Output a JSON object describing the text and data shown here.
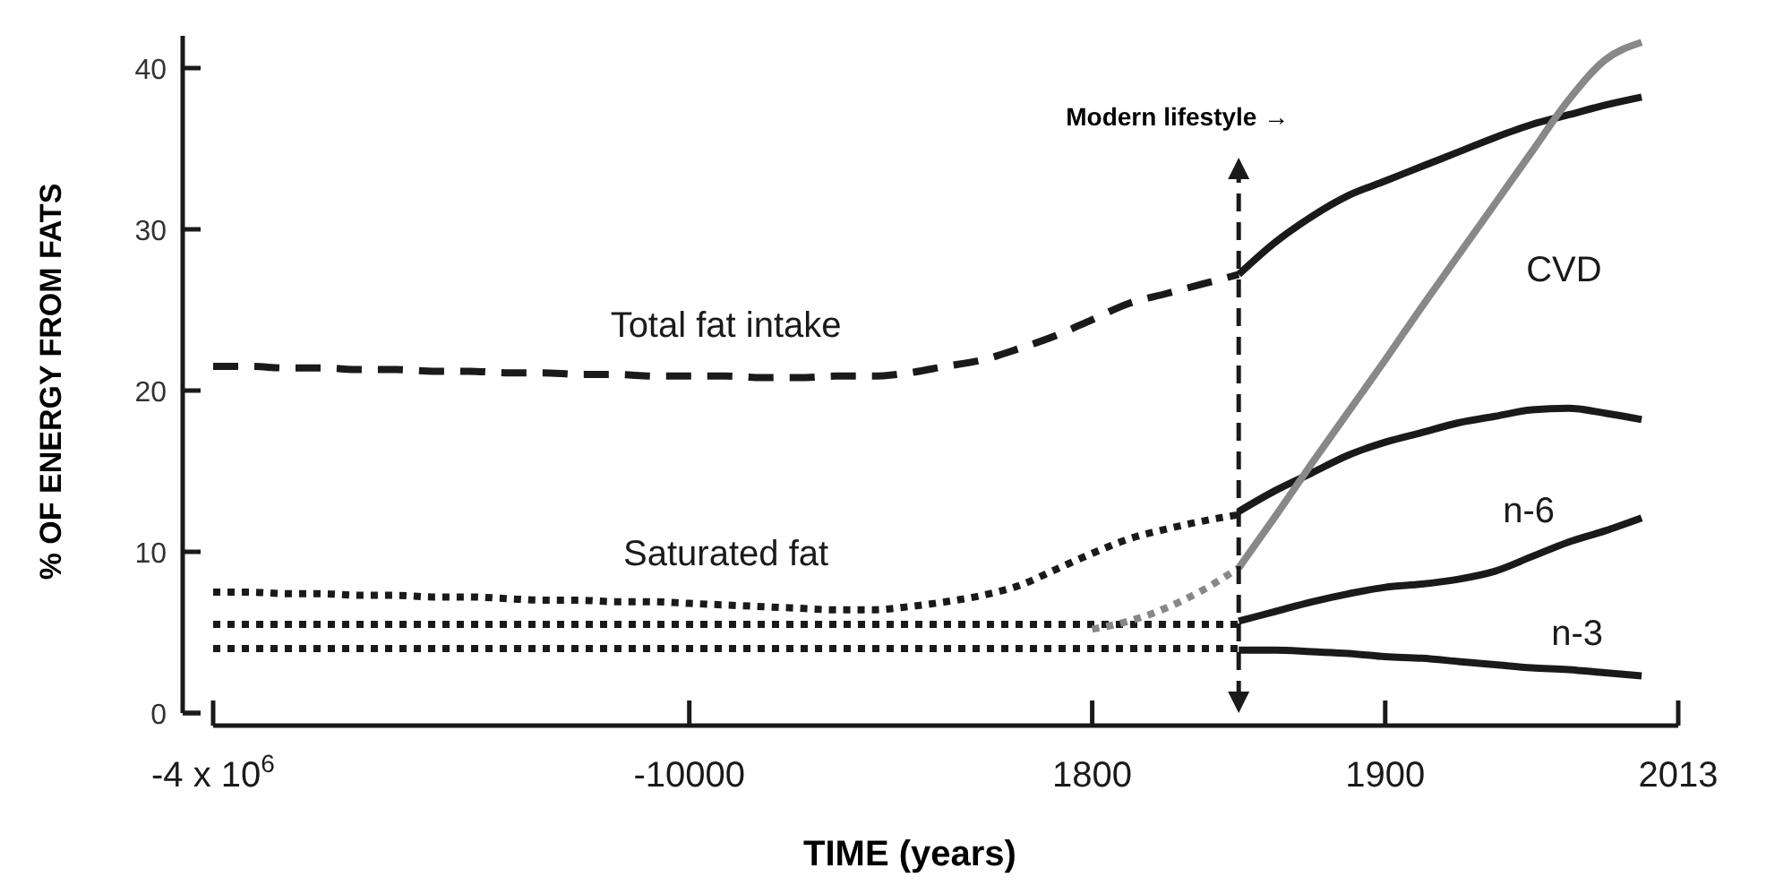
{
  "chart_data": {
    "type": "line",
    "xlabel": "TIME (years)",
    "ylabel": "% OF ENERGY FROM FATS",
    "ylim": [
      0,
      42
    ],
    "yticks": [
      0,
      10,
      20,
      30,
      40
    ],
    "grid": false,
    "categories": [
      "-4 x 10$^{6}$",
      null,
      null,
      null,
      null,
      null,
      null,
      null,
      null,
      null,
      null,
      null,
      null,
      "-10000",
      null,
      null,
      null,
      null,
      null,
      null,
      null,
      null,
      null,
      null,
      "1800",
      null,
      null,
      null,
      null,
      null,
      null,
      null,
      "1900",
      null,
      null,
      null,
      null,
      null,
      null,
      null,
      "2013"
    ],
    "series": [
      {
        "name": "Total fat intake",
        "color": "#1a1a1a",
        "line_style": "dashed",
        "values": [
          21.5,
          21.5,
          21.4,
          21.4,
          21.3,
          21.3,
          21.2,
          21.2,
          21.1,
          21.1,
          21.0,
          21.0,
          20.9,
          20.9,
          20.9,
          20.8,
          20.8,
          20.9,
          20.9,
          21.1,
          21.5,
          21.9,
          22.6,
          23.4,
          24.4,
          25.4,
          26.0,
          26.6,
          27.2,
          null,
          null,
          null,
          null,
          null,
          null,
          null,
          null,
          null,
          null,
          null,
          null
        ]
      },
      {
        "color": "#1a1a1a",
        "line_style": "solid",
        "values": [
          null,
          null,
          null,
          null,
          null,
          null,
          null,
          null,
          null,
          null,
          null,
          null,
          null,
          null,
          null,
          null,
          null,
          null,
          null,
          null,
          null,
          null,
          null,
          null,
          null,
          null,
          null,
          null,
          27.2,
          29.2,
          30.8,
          32.1,
          33.0,
          33.9,
          34.8,
          35.7,
          36.5,
          37.1,
          37.7,
          38.2,
          null
        ]
      },
      {
        "name": "Saturated fat",
        "color": "#1a1a1a",
        "line_style": "dotted",
        "values": [
          7.5,
          7.5,
          7.4,
          7.4,
          7.3,
          7.3,
          7.2,
          7.2,
          7.1,
          7.0,
          7.0,
          6.9,
          6.9,
          6.8,
          6.7,
          6.6,
          6.5,
          6.4,
          6.4,
          6.6,
          6.9,
          7.3,
          7.9,
          8.9,
          9.9,
          10.8,
          11.4,
          11.9,
          12.3,
          null,
          null,
          null,
          null,
          null,
          null,
          null,
          null,
          null,
          null,
          null,
          null
        ]
      },
      {
        "color": "#1a1a1a",
        "line_style": "solid",
        "values": [
          null,
          null,
          null,
          null,
          null,
          null,
          null,
          null,
          null,
          null,
          null,
          null,
          null,
          null,
          null,
          null,
          null,
          null,
          null,
          null,
          null,
          null,
          null,
          null,
          null,
          null,
          null,
          null,
          12.5,
          13.8,
          14.9,
          16.0,
          16.8,
          17.4,
          18.0,
          18.4,
          18.8,
          18.9,
          18.6,
          18.2,
          null
        ]
      },
      {
        "color": "#1a1a1a",
        "line_style": "dotted",
        "values": [
          5.5,
          5.5,
          5.5,
          5.5,
          5.5,
          5.5,
          5.5,
          5.5,
          5.5,
          5.5,
          5.5,
          5.5,
          5.5,
          5.5,
          5.5,
          5.5,
          5.5,
          5.5,
          5.5,
          5.5,
          5.5,
          5.5,
          5.5,
          5.5,
          5.5,
          5.5,
          5.5,
          5.5,
          5.5,
          null,
          null,
          null,
          null,
          null,
          null,
          null,
          null,
          null,
          null,
          null,
          null
        ]
      },
      {
        "name": "n-6",
        "color": "#1a1a1a",
        "line_style": "solid",
        "values": [
          null,
          null,
          null,
          null,
          null,
          null,
          null,
          null,
          null,
          null,
          null,
          null,
          null,
          null,
          null,
          null,
          null,
          null,
          null,
          null,
          null,
          null,
          null,
          null,
          null,
          null,
          null,
          null,
          5.7,
          6.3,
          6.9,
          7.4,
          7.8,
          8.0,
          8.3,
          8.8,
          9.7,
          10.6,
          11.3,
          12.1,
          null
        ]
      },
      {
        "color": "#1a1a1a",
        "line_style": "dotted",
        "values": [
          4,
          4,
          4,
          4,
          4,
          4,
          4,
          4,
          4,
          4,
          4,
          4,
          4,
          4,
          4,
          4,
          4,
          4,
          4,
          4,
          4,
          4,
          4,
          4,
          4,
          4,
          4,
          4,
          4,
          null,
          null,
          null,
          null,
          null,
          null,
          null,
          null,
          null,
          null,
          null,
          null
        ]
      },
      {
        "name": "n-3",
        "color": "#1a1a1a",
        "line_style": "solid",
        "values": [
          null,
          null,
          null,
          null,
          null,
          null,
          null,
          null,
          null,
          null,
          null,
          null,
          null,
          null,
          null,
          null,
          null,
          null,
          null,
          null,
          null,
          null,
          null,
          null,
          null,
          null,
          null,
          null,
          3.9,
          3.9,
          3.8,
          3.7,
          3.5,
          3.4,
          3.2,
          3.0,
          2.8,
          2.7,
          2.5,
          2.3,
          null
        ]
      },
      {
        "color": "#888888",
        "line_style": "dotted",
        "values": [
          null,
          null,
          null,
          null,
          null,
          null,
          null,
          null,
          null,
          null,
          null,
          null,
          null,
          null,
          null,
          null,
          null,
          null,
          null,
          null,
          null,
          null,
          null,
          null,
          5.2,
          5.7,
          6.5,
          7.6,
          9.0,
          null,
          null,
          null,
          null,
          null,
          null,
          null,
          null,
          null,
          null,
          null,
          null
        ]
      },
      {
        "name": "CVD",
        "color": "#888888",
        "line_style": "solid",
        "values": [
          null,
          null,
          null,
          null,
          null,
          null,
          null,
          null,
          null,
          null,
          null,
          null,
          null,
          null,
          null,
          null,
          null,
          null,
          null,
          null,
          null,
          null,
          null,
          null,
          null,
          null,
          null,
          null,
          9.0,
          12.2,
          15.5,
          18.7,
          21.9,
          25.2,
          28.4,
          31.6,
          34.8,
          38.0,
          40.5,
          41.6,
          null
        ]
      }
    ],
    "annotations": [
      "Modern lifestyle →"
    ]
  }
}
